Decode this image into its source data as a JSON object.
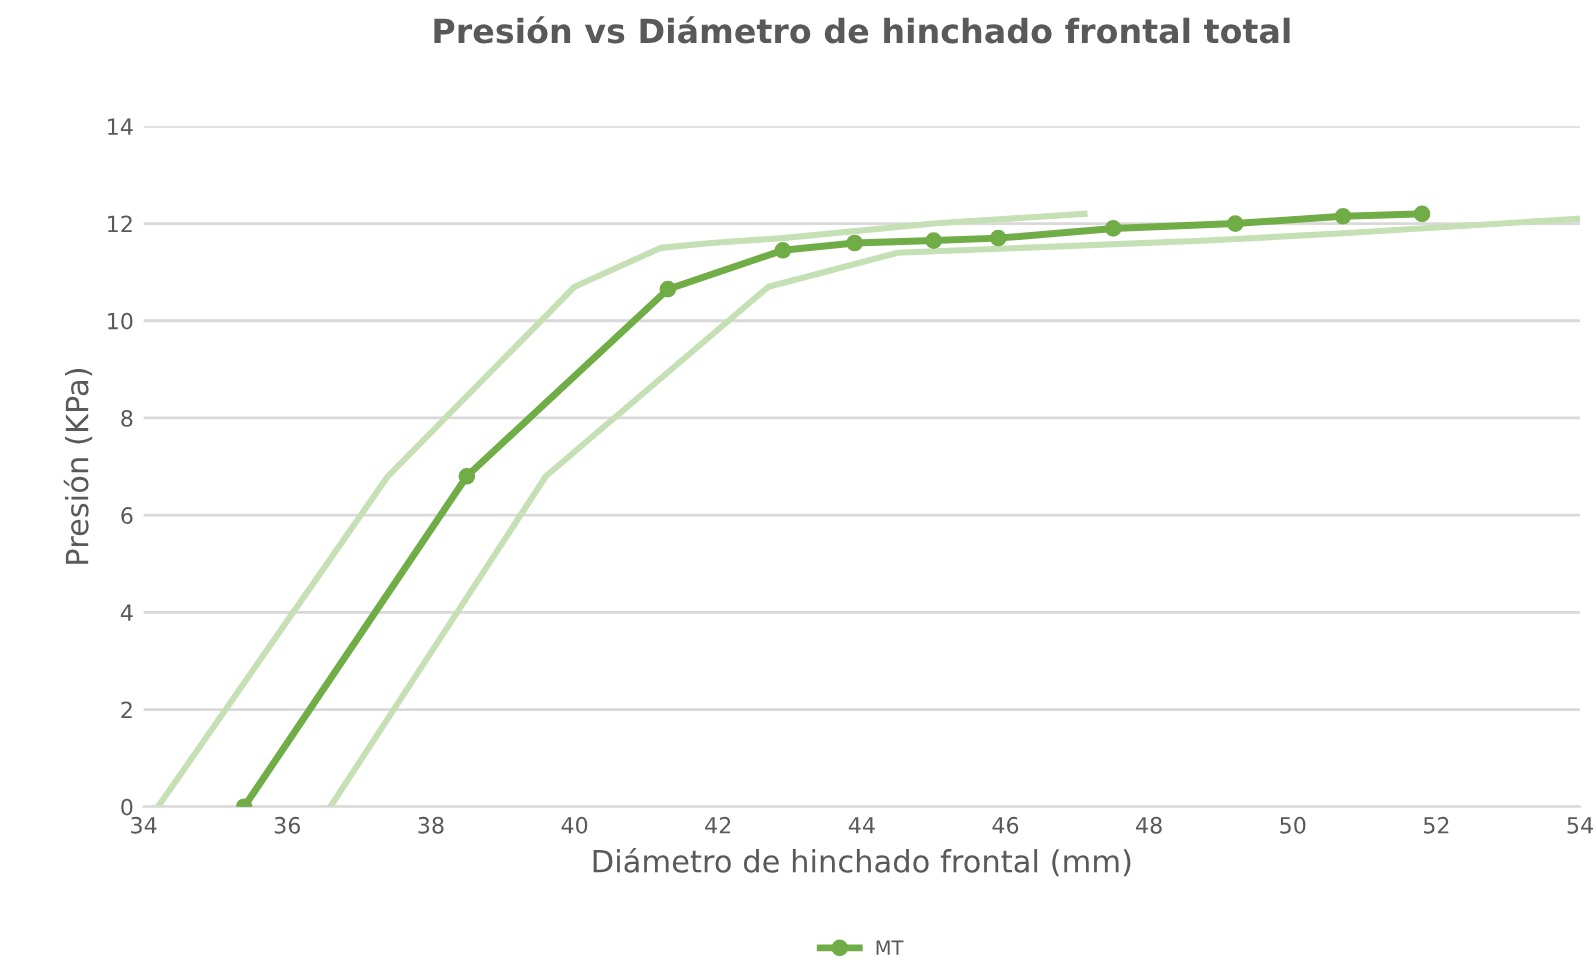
{
  "chart_data": {
    "type": "line",
    "title": "Presión vs Diámetro de hinchado frontal total",
    "xlabel": "Diámetro de hinchado frontal (mm)",
    "ylabel": "Presión (KPa)",
    "xlim": [
      34,
      54
    ],
    "xticks": [
      34,
      36,
      38,
      40,
      42,
      44,
      46,
      48,
      50,
      52,
      54
    ],
    "ylim": [
      0,
      14
    ],
    "yticks": [
      0,
      2,
      4,
      6,
      8,
      10,
      12,
      14
    ],
    "grid": "y",
    "legend": "bottom",
    "line_style": "solid",
    "series": [
      {
        "color": "#c5e0b4",
        "marker": "none",
        "x": [
          34.2,
          37.4,
          40.0,
          41.2,
          41.9,
          42.9,
          45.0,
          47.1
        ],
        "values": [
          0,
          6.8,
          10.7,
          11.5,
          11.6,
          11.7,
          12.0,
          12.2
        ]
      },
      {
        "color": "#c5e0b4",
        "marker": "none",
        "x": [
          36.6,
          39.6,
          42.7,
          44.5,
          48.8,
          50.7,
          54
        ],
        "values": [
          0,
          6.8,
          10.7,
          11.4,
          11.65,
          11.8,
          12.1
        ]
      },
      {
        "name": "MT",
        "color": "#70ad47",
        "marker": "circle",
        "x": [
          35.4,
          38.5,
          41.3,
          42.9,
          43.9,
          45.0,
          45.9,
          47.5,
          49.2,
          50.7,
          51.8
        ],
        "values": [
          0,
          6.8,
          10.65,
          11.45,
          11.6,
          11.65,
          11.7,
          11.9,
          12.0,
          12.15,
          12.2
        ]
      }
    ]
  }
}
